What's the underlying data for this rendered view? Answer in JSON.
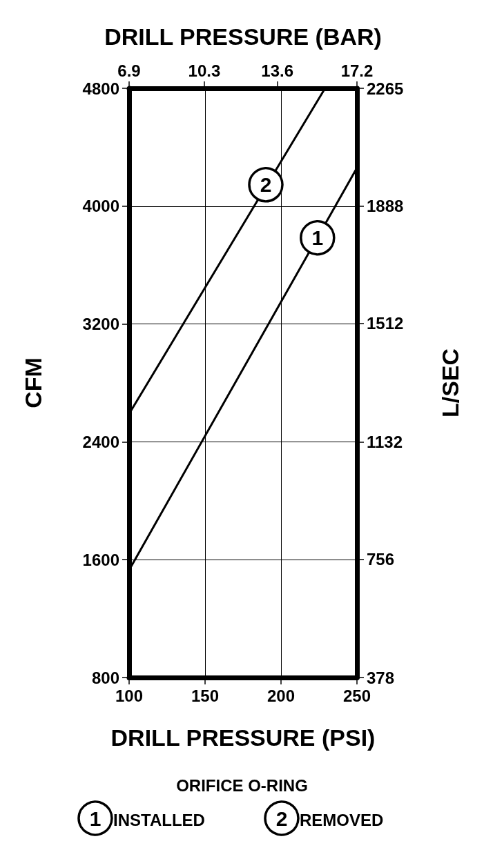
{
  "chart_data": {
    "type": "line",
    "x2label": "DRILL PRESSURE (BAR)",
    "xlabel": "DRILL PRESSURE (PSI)",
    "ylabel": "CFM",
    "y2label": "L/SEC",
    "legend_title": "ORIFICE O-RING",
    "xlim": [
      100,
      250
    ],
    "xticks": [
      100,
      150,
      200,
      250
    ],
    "x2lim": [
      6.9,
      17.2
    ],
    "x2ticks": [
      6.9,
      10.3,
      13.6,
      17.2
    ],
    "ylim": [
      800,
      4800
    ],
    "yticks": [
      800,
      1600,
      2400,
      3200,
      4000,
      4800
    ],
    "y2lim": [
      378,
      2265
    ],
    "y2ticks": [
      378,
      756,
      1132,
      1512,
      1888,
      2265
    ],
    "grid": true,
    "legend": "bottom",
    "marker": "none",
    "line_style": "solid",
    "series": [
      {
        "name": "INSTALLED",
        "color": "#000000",
        "x": [
          100,
          250
        ],
        "values": [
          1530,
          4260
        ]
      },
      {
        "name": "REMOVED",
        "color": "#000000",
        "x": [
          100,
          229
        ],
        "values": [
          2590,
          4800
        ]
      }
    ],
    "annotations": [
      {
        "text": "1",
        "x": 224,
        "y": 3785
      },
      {
        "text": "2",
        "x": 190,
        "y": 4145
      }
    ]
  }
}
